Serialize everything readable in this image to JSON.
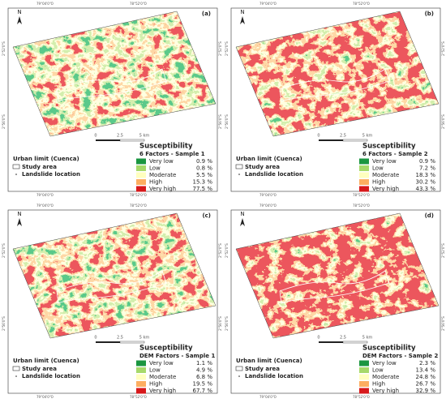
{
  "common": {
    "north": "N",
    "top_coords": [
      "79°04'0\"O",
      "78°52'0\"O"
    ],
    "side_coords": [
      "2°52'0\"S",
      "2°56'0\"S"
    ],
    "scale": [
      "0",
      "2.5",
      "5 km"
    ],
    "legend_left": [
      "Urban limit (Cuenca)",
      "Study area",
      "Landslide location"
    ],
    "legend_title": "Susceptibility",
    "classes": [
      "Very low",
      "Low",
      "Moderate",
      "High",
      "Very high"
    ],
    "class_colors": [
      "#1a9641",
      "#a6d96a",
      "#ffffbf",
      "#fdae61",
      "#d7191c"
    ]
  },
  "panels": [
    {
      "label": "(a)",
      "subtitle": "6 Factors - Sample 1",
      "percentages": [
        "0.9 %",
        "0.8 %",
        "5.5 %",
        "15.3 %",
        "77.5 %"
      ]
    },
    {
      "label": "(b)",
      "subtitle": "6 Factors - Sample 2",
      "percentages": [
        "0.9 %",
        "7.2 %",
        "18.3 %",
        "30.2 %",
        "43.3 %"
      ]
    },
    {
      "label": "(c)",
      "subtitle": "DEM Factors - Sample 1",
      "percentages": [
        "1.1 %",
        "4.9 %",
        "6.8 %",
        "19.5 %",
        "67.7 %"
      ]
    },
    {
      "label": "(d)",
      "subtitle": "DEM Factors - Sample 2",
      "percentages": [
        "2.3 %",
        "13.4 %",
        "24.8 %",
        "26.7 %",
        "32.9 %"
      ]
    }
  ]
}
